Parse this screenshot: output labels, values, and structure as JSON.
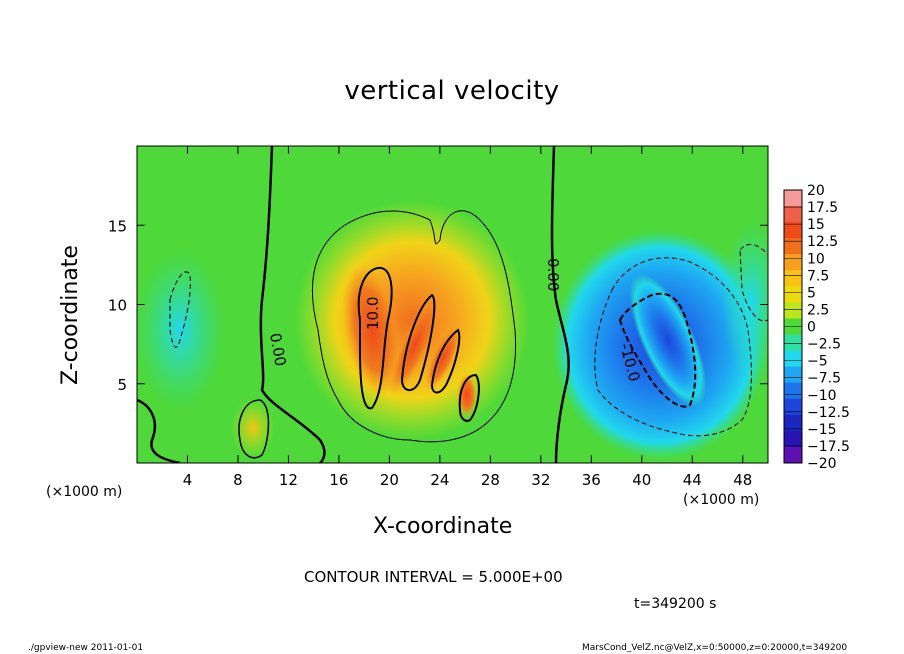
{
  "chart_data": {
    "type": "heatmap",
    "title": "vertical velocity",
    "xlabel": "X-coordinate",
    "ylabel": "Z-coordinate",
    "x_unit_label": "(×1000 m)",
    "xlim": [
      0,
      50
    ],
    "ylim": [
      0,
      20
    ],
    "x_ticks": [
      4,
      8,
      12,
      16,
      20,
      24,
      28,
      32,
      36,
      40,
      44,
      48
    ],
    "y_ticks": [
      5,
      10,
      15
    ],
    "colorbar": {
      "labels": [
        "20",
        "17.5",
        "15",
        "12.5",
        "10",
        "7.5",
        "5",
        "2.5",
        "0",
        "−2.5",
        "−5",
        "−7.5",
        "−10",
        "−12.5",
        "−15",
        "−17.5",
        "−20"
      ],
      "colors": [
        "#f79a9a",
        "#ef5f4a",
        "#ee4a1c",
        "#f0701e",
        "#f7a020",
        "#f7c416",
        "#ecdc0e",
        "#bde61c",
        "#4ed83a",
        "#2fe0a0",
        "#21d8ec",
        "#1ea6f2",
        "#1e72ea",
        "#1e46dc",
        "#1a26be",
        "#2812b4",
        "#6010b0"
      ]
    },
    "contour_labels": [
      "0.00",
      "10.0",
      "0.00",
      "-10.0"
    ],
    "contour_interval": "CONTOUR INTERVAL = 5.000E+00",
    "time": "t=349200 s"
  },
  "footer": {
    "left": "./gpview-new   2011-01-01",
    "right": "MarsCond_VelZ.nc@VelZ,x=0:50000,z=0:20000,t=349200"
  }
}
